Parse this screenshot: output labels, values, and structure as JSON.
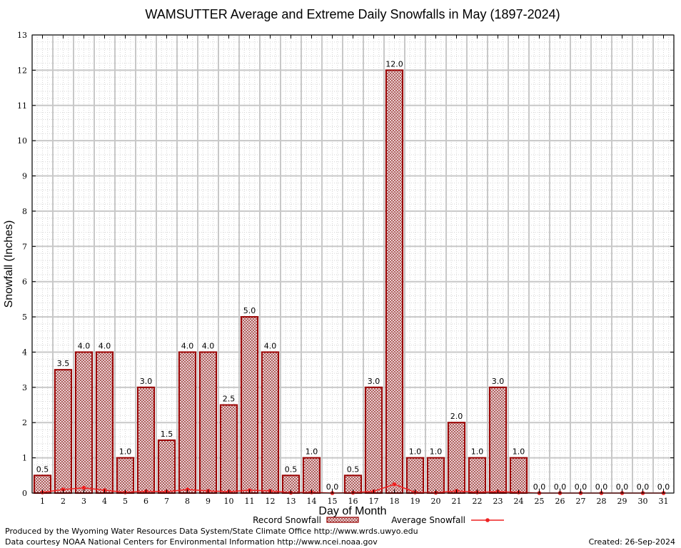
{
  "chart_data": {
    "type": "bar",
    "title": "WAMSUTTER Average and Extreme Daily Snowfalls in May (1897-2024)",
    "xlabel": "Day of Month",
    "ylabel": "Snowfall (Inches)",
    "ylim": [
      0,
      13
    ],
    "yticks": [
      "0",
      "1",
      "2",
      "3",
      "4",
      "5",
      "6",
      "7",
      "8",
      "9",
      "10",
      "11",
      "12",
      "13"
    ],
    "categories": [
      "1",
      "2",
      "3",
      "4",
      "5",
      "6",
      "7",
      "8",
      "9",
      "10",
      "11",
      "12",
      "13",
      "14",
      "15",
      "16",
      "17",
      "18",
      "19",
      "20",
      "21",
      "22",
      "23",
      "24",
      "25",
      "26",
      "27",
      "28",
      "29",
      "30",
      "31"
    ],
    "series": [
      {
        "name": "Record Snowfall",
        "type": "bar",
        "values": [
          0.5,
          3.5,
          4.0,
          4.0,
          1.0,
          3.0,
          1.5,
          4.0,
          4.0,
          2.5,
          5.0,
          4.0,
          0.5,
          1.0,
          0.0,
          0.5,
          3.0,
          12.0,
          1.0,
          1.0,
          2.0,
          1.0,
          3.0,
          1.0,
          0.0,
          0.0,
          0.0,
          0.0,
          0.0,
          0.0,
          0.0
        ],
        "labels": [
          "0.5",
          "3.5",
          "4.0",
          "4.0",
          "1.0",
          "3.0",
          "1.5",
          "4.0",
          "4.0",
          "2.5",
          "5.0",
          "4.0",
          "0.5",
          "1.0",
          "0.0",
          "0.5",
          "3.0",
          "12.0",
          "1.0",
          "1.0",
          "2.0",
          "1.0",
          "3.0",
          "1.0",
          "0.0",
          "0.0",
          "0.0",
          "0.0",
          "0.0",
          "0.0",
          "0.0"
        ]
      },
      {
        "name": "Average Snowfall",
        "type": "line",
        "values": [
          0.02,
          0.1,
          0.15,
          0.08,
          0.02,
          0.05,
          0.04,
          0.1,
          0.06,
          0.04,
          0.08,
          0.06,
          0.01,
          0.02,
          0.0,
          0.01,
          0.05,
          0.25,
          0.02,
          0.01,
          0.06,
          0.02,
          0.04,
          0.02,
          0.0,
          0.0,
          0.0,
          0.0,
          0.0,
          0.0,
          0.0
        ]
      }
    ],
    "grid": true,
    "legend_position": "bottom-center",
    "colors": {
      "bar_outline": "#990000",
      "bar_fill": "#c08080",
      "line": "#ee2222",
      "grid_major": "#c8c8c8",
      "grid_minor": "#d6d6d6"
    }
  },
  "footer": {
    "produced_by": "Produced by the Wyoming Water Resources Data System/State Climate Office http://www.wrds.uwyo.edu",
    "courtesy": "Data courtesy NOAA National Centers for Environmental Information http://www.ncei.noaa.gov",
    "created": "Created: 26-Sep-2024"
  }
}
